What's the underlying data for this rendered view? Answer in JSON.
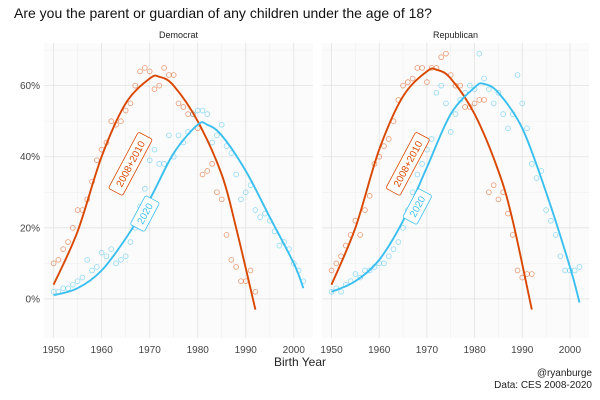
{
  "chart_data": {
    "type": "line",
    "title": "Are you the parent or guardian of any children under the age of 18?",
    "xlabel": "Birth Year",
    "ylabel": "",
    "xlim": [
      1948,
      2004
    ],
    "ylim": [
      -11,
      72
    ],
    "x_ticks": [
      1950,
      1960,
      1970,
      1980,
      1990,
      2000
    ],
    "x_tick_labels": [
      "1950",
      "1960",
      "1970",
      "1980",
      "1990",
      "2000"
    ],
    "y_ticks": [
      0,
      20,
      40,
      60
    ],
    "y_tick_labels": [
      "0%",
      "20%",
      "40%",
      "60%"
    ],
    "colors": {
      "orange": "#d94801",
      "blue": "#3bbfef"
    },
    "panels": [
      {
        "name": "Democrat",
        "series": [
          {
            "name": "2008+2010",
            "color": "#d94801",
            "label_at": [
              1966,
              38
            ],
            "curve": [
              [
                1950,
                4
              ],
              [
                1955,
                19
              ],
              [
                1960,
                40
              ],
              [
                1965,
                55
              ],
              [
                1970,
                62
              ],
              [
                1972,
                62.5
              ],
              [
                1975,
                60
              ],
              [
                1980,
                50
              ],
              [
                1985,
                35
              ],
              [
                1988,
                20
              ],
              [
                1992,
                -3
              ]
            ],
            "points": [
              [
                1950,
                10
              ],
              [
                1951,
                11
              ],
              [
                1952,
                14
              ],
              [
                1953,
                16
              ],
              [
                1954,
                20
              ],
              [
                1955,
                25
              ],
              [
                1956,
                25
              ],
              [
                1957,
                28
              ],
              [
                1958,
                33
              ],
              [
                1959,
                39
              ],
              [
                1960,
                42
              ],
              [
                1961,
                44
              ],
              [
                1962,
                50
              ],
              [
                1963,
                49
              ],
              [
                1964,
                50
              ],
              [
                1965,
                53
              ],
              [
                1966,
                55
              ],
              [
                1967,
                60
              ],
              [
                1968,
                64
              ],
              [
                1969,
                65
              ],
              [
                1970,
                64
              ],
              [
                1971,
                59
              ],
              [
                1972,
                60
              ],
              [
                1973,
                65
              ],
              [
                1974,
                63
              ],
              [
                1975,
                63
              ],
              [
                1976,
                55
              ],
              [
                1977,
                54
              ],
              [
                1978,
                52
              ],
              [
                1979,
                52
              ],
              [
                1980,
                48
              ],
              [
                1981,
                35
              ],
              [
                1982,
                36
              ],
              [
                1983,
                38
              ],
              [
                1984,
                30
              ],
              [
                1985,
                28
              ],
              [
                1986,
                18
              ],
              [
                1987,
                11
              ],
              [
                1988,
                9
              ],
              [
                1989,
                5
              ],
              [
                1990,
                5
              ],
              [
                1991,
                8
              ],
              [
                1992,
                2
              ]
            ]
          },
          {
            "name": "2020",
            "color": "#3bbfef",
            "label_at": [
              1969,
              24
            ],
            "curve": [
              [
                1950,
                1
              ],
              [
                1955,
                3
              ],
              [
                1960,
                8
              ],
              [
                1965,
                17
              ],
              [
                1970,
                28
              ],
              [
                1975,
                41
              ],
              [
                1980,
                49
              ],
              [
                1982,
                49
              ],
              [
                1985,
                46
              ],
              [
                1990,
                36
              ],
              [
                1995,
                23
              ],
              [
                2000,
                10
              ],
              [
                2002,
                3
              ]
            ],
            "points": [
              [
                1950,
                2
              ],
              [
                1951,
                2
              ],
              [
                1952,
                3
              ],
              [
                1953,
                3
              ],
              [
                1954,
                4
              ],
              [
                1955,
                5
              ],
              [
                1956,
                6
              ],
              [
                1957,
                11
              ],
              [
                1958,
                8
              ],
              [
                1959,
                9
              ],
              [
                1960,
                13
              ],
              [
                1961,
                12
              ],
              [
                1962,
                14
              ],
              [
                1963,
                10
              ],
              [
                1964,
                11
              ],
              [
                1965,
                12
              ],
              [
                1966,
                16
              ],
              [
                1967,
                20
              ],
              [
                1968,
                26
              ],
              [
                1969,
                31
              ],
              [
                1970,
                39
              ],
              [
                1971,
                42
              ],
              [
                1972,
                38
              ],
              [
                1973,
                38
              ],
              [
                1974,
                46
              ],
              [
                1975,
                40
              ],
              [
                1976,
                46
              ],
              [
                1977,
                44
              ],
              [
                1978,
                47
              ],
              [
                1979,
                52
              ],
              [
                1980,
                53
              ],
              [
                1981,
                53
              ],
              [
                1982,
                52
              ],
              [
                1983,
                44
              ],
              [
                1984,
                46
              ],
              [
                1985,
                49
              ],
              [
                1986,
                43
              ],
              [
                1987,
                41
              ],
              [
                1988,
                35
              ],
              [
                1989,
                28
              ],
              [
                1990,
                30
              ],
              [
                1991,
                32
              ],
              [
                1992,
                25
              ],
              [
                1993,
                23
              ],
              [
                1994,
                24
              ],
              [
                1995,
                22
              ],
              [
                1996,
                19
              ],
              [
                1997,
                15
              ],
              [
                1998,
                16
              ],
              [
                1999,
                14
              ],
              [
                2000,
                10
              ],
              [
                2001,
                8
              ],
              [
                2002,
                5
              ]
            ]
          }
        ]
      },
      {
        "name": "Republican",
        "series": [
          {
            "name": "2008+2010",
            "color": "#d94801",
            "label_at": [
              1966,
              38
            ],
            "curve": [
              [
                1950,
                4
              ],
              [
                1955,
                20
              ],
              [
                1960,
                42
              ],
              [
                1965,
                57
              ],
              [
                1970,
                64
              ],
              [
                1972,
                64.5
              ],
              [
                1975,
                62
              ],
              [
                1980,
                52
              ],
              [
                1985,
                36
              ],
              [
                1988,
                22
              ],
              [
                1992,
                -3
              ]
            ],
            "points": [
              [
                1950,
                8
              ],
              [
                1951,
                10
              ],
              [
                1952,
                12
              ],
              [
                1953,
                15
              ],
              [
                1954,
                18
              ],
              [
                1955,
                22
              ],
              [
                1956,
                18
              ],
              [
                1957,
                25
              ],
              [
                1958,
                29
              ],
              [
                1959,
                38
              ],
              [
                1960,
                40
              ],
              [
                1961,
                43
              ],
              [
                1962,
                45
              ],
              [
                1963,
                50
              ],
              [
                1964,
                56
              ],
              [
                1965,
                60
              ],
              [
                1966,
                61
              ],
              [
                1967,
                62
              ],
              [
                1968,
                65
              ],
              [
                1969,
                65
              ],
              [
                1970,
                61
              ],
              [
                1971,
                65
              ],
              [
                1972,
                65
              ],
              [
                1973,
                68
              ],
              [
                1974,
                69
              ],
              [
                1975,
                63
              ],
              [
                1976,
                60
              ],
              [
                1977,
                60
              ],
              [
                1978,
                54
              ],
              [
                1979,
                54
              ],
              [
                1980,
                55
              ],
              [
                1981,
                56
              ],
              [
                1982,
                56
              ],
              [
                1983,
                30
              ],
              [
                1984,
                32
              ],
              [
                1985,
                28
              ],
              [
                1986,
                30
              ],
              [
                1987,
                24
              ],
              [
                1988,
                18
              ],
              [
                1989,
                8
              ],
              [
                1990,
                6
              ],
              [
                1991,
                7
              ],
              [
                1992,
                7
              ]
            ]
          },
          {
            "name": "2020",
            "color": "#3bbfef",
            "label_at": [
              1968,
              26
            ],
            "curve": [
              [
                1950,
                2
              ],
              [
                1955,
                5
              ],
              [
                1960,
                11
              ],
              [
                1965,
                22
              ],
              [
                1970,
                37
              ],
              [
                1975,
                52
              ],
              [
                1980,
                59.5
              ],
              [
                1982,
                60.5
              ],
              [
                1985,
                58
              ],
              [
                1990,
                48
              ],
              [
                1995,
                30
              ],
              [
                2000,
                9
              ],
              [
                2002,
                -1
              ]
            ],
            "points": [
              [
                1950,
                2
              ],
              [
                1951,
                3
              ],
              [
                1952,
                2
              ],
              [
                1953,
                4
              ],
              [
                1954,
                5
              ],
              [
                1955,
                7
              ],
              [
                1956,
                6
              ],
              [
                1957,
                8
              ],
              [
                1958,
                8
              ],
              [
                1959,
                9
              ],
              [
                1960,
                10
              ],
              [
                1961,
                10
              ],
              [
                1962,
                12
              ],
              [
                1963,
                14
              ],
              [
                1964,
                16
              ],
              [
                1965,
                20
              ],
              [
                1966,
                25
              ],
              [
                1967,
                30
              ],
              [
                1968,
                35
              ],
              [
                1969,
                38
              ],
              [
                1970,
                42
              ],
              [
                1971,
                45
              ],
              [
                1972,
                58
              ],
              [
                1973,
                60
              ],
              [
                1974,
                55
              ],
              [
                1975,
                47
              ],
              [
                1976,
                52
              ],
              [
                1977,
                56
              ],
              [
                1978,
                58
              ],
              [
                1979,
                60
              ],
              [
                1980,
                59
              ],
              [
                1981,
                69
              ],
              [
                1982,
                62
              ],
              [
                1983,
                59
              ],
              [
                1984,
                55
              ],
              [
                1985,
                58
              ],
              [
                1986,
                52
              ],
              [
                1987,
                48
              ],
              [
                1988,
                52
              ],
              [
                1989,
                63
              ],
              [
                1990,
                55
              ],
              [
                1991,
                48
              ],
              [
                1992,
                38
              ],
              [
                1993,
                34
              ],
              [
                1994,
                36
              ],
              [
                1995,
                25
              ],
              [
                1996,
                22
              ],
              [
                1997,
                18
              ],
              [
                1998,
                12
              ],
              [
                1999,
                8
              ],
              [
                2000,
                8
              ],
              [
                2001,
                8
              ],
              [
                2002,
                9
              ]
            ]
          }
        ]
      }
    ]
  },
  "credit": {
    "handle": "@ryanburge",
    "source": "Data: CES 2008-2020"
  }
}
